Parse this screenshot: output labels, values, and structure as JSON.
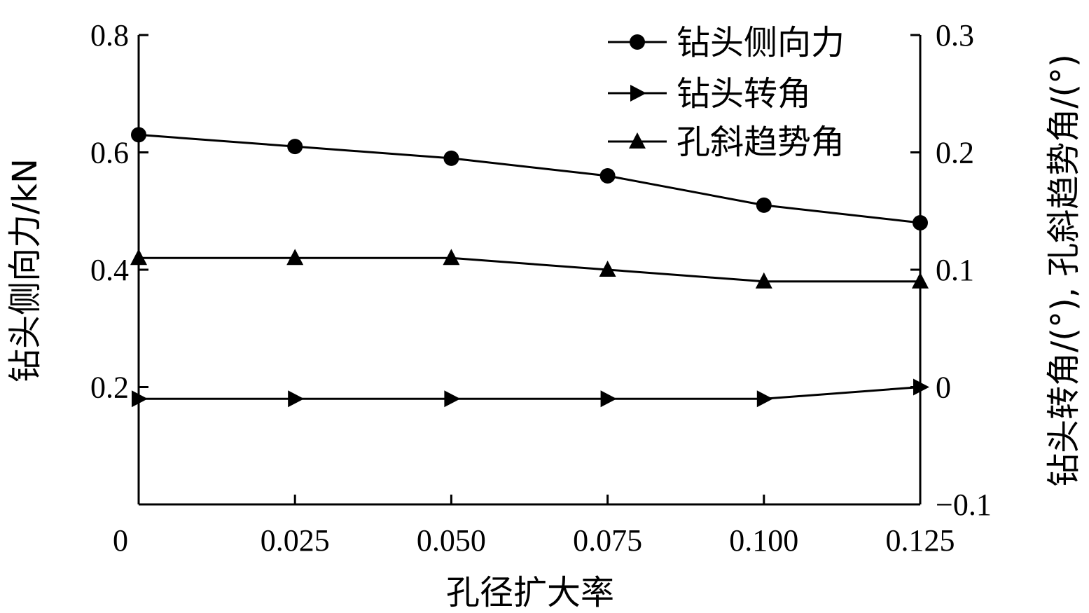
{
  "chart_data": {
    "type": "line",
    "x": [
      0,
      0.025,
      0.05,
      0.075,
      0.1,
      0.125
    ],
    "x_tick_labels": [
      "0",
      "0.025",
      "0.050",
      "0.075",
      "0.100",
      "0.125"
    ],
    "xlabel": "孔径扩大率",
    "xlim": [
      0,
      0.125
    ],
    "ylabel_left": "钻头侧向力/kN",
    "ylim_left": [
      0,
      0.8
    ],
    "y_left_ticks": [
      0.2,
      0.4,
      0.6,
      0.8
    ],
    "y_left_tick_labels": [
      "0.2",
      "0.4",
      "0.6",
      "0.8"
    ],
    "ylabel_right": "钻头转角/(°), 孔斜趋势角/(°)",
    "ylim_right": [
      -0.1,
      0.3
    ],
    "y_right_ticks": [
      -0.1,
      0,
      0.1,
      0.2,
      0.3
    ],
    "y_right_tick_labels": [
      "−0.1",
      "0",
      "0.1",
      "0.2",
      "0.3"
    ],
    "series": [
      {
        "name": "钻头侧向力",
        "axis": "left",
        "marker": "circle",
        "values": [
          0.63,
          0.61,
          0.59,
          0.56,
          0.51,
          0.48
        ]
      },
      {
        "name": "钻头转角",
        "axis": "right",
        "marker": "triangle-right",
        "values": [
          -0.01,
          -0.01,
          -0.01,
          -0.01,
          -0.01,
          0.0
        ]
      },
      {
        "name": "孔斜趋势角",
        "axis": "right",
        "marker": "triangle-up",
        "values": [
          0.11,
          0.11,
          0.11,
          0.1,
          0.09,
          0.09
        ]
      }
    ],
    "legend_position": "top-right",
    "grid": false
  }
}
